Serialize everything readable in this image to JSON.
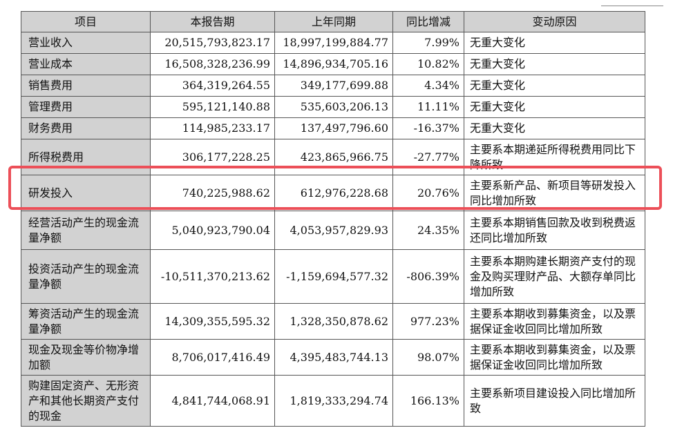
{
  "headers": [
    "项目",
    "本报告期",
    "上年同期",
    "同比增减",
    "变动原因"
  ],
  "rows": [
    {
      "item": "营业收入",
      "current": "20,515,793,823.17",
      "prior": "18,997,199,884.77",
      "change": "7.99%",
      "reason": "无重大变化"
    },
    {
      "item": "营业成本",
      "current": "16,508,328,236.99",
      "prior": "14,896,934,705.16",
      "change": "10.82%",
      "reason": "无重大变化"
    },
    {
      "item": "销售费用",
      "current": "364,319,264.55",
      "prior": "349,177,699.88",
      "change": "4.34%",
      "reason": "无重大变化"
    },
    {
      "item": "管理费用",
      "current": "595,121,140.88",
      "prior": "535,603,206.13",
      "change": "11.11%",
      "reason": "无重大变化"
    },
    {
      "item": "财务费用",
      "current": "114,985,233.17",
      "prior": "137,497,796.60",
      "change": "-16.37%",
      "reason": "无重大变化"
    },
    {
      "item": "所得税费用",
      "current": "306,177,228.25",
      "prior": "423,865,966.75",
      "change": "-27.77%",
      "reason": "主要系本期递延所得税费用同比下降所致"
    },
    {
      "item": "研发投入",
      "current": "740,225,988.62",
      "prior": "612,976,228.68",
      "change": "20.76%",
      "reason": "主要系新产品、新项目等研发投入同比增加所致"
    },
    {
      "item": "经营活动产生的现金流量净额",
      "current": "5,040,923,790.04",
      "prior": "4,053,957,829.93",
      "change": "24.35%",
      "reason": "主要系本期销售回款及收到税费返还同比增加所致"
    },
    {
      "item": "投资活动产生的现金流量净额",
      "current": "-10,511,370,213.62",
      "prior": "-1,159,694,577.32",
      "change": "-806.39%",
      "reason": "主要系本期购建长期资产支付的现金及购买理财产品、大额存单同比增加所致"
    },
    {
      "item": "筹资活动产生的现金流量净额",
      "current": "14,309,355,595.32",
      "prior": "1,328,350,878.62",
      "change": "977.23%",
      "reason": "主要系本期收到募集资金，以及票据保证金收回同比增加所致"
    },
    {
      "item": "现金及现金等价物净增加额",
      "current": "8,706,017,416.49",
      "prior": "4,395,483,744.13",
      "change": "98.07%",
      "reason": "主要系本期收到募集资金，以及票据保证金收回同比增加所致"
    },
    {
      "item": "购建固定资产、无形资产和其他长期资产支付的现金",
      "current": "4,841,744,068.91",
      "prior": "1,819,333,294.74",
      "change": "166.13%",
      "reason": "主要系新项目建设投入同比增加所致"
    }
  ]
}
